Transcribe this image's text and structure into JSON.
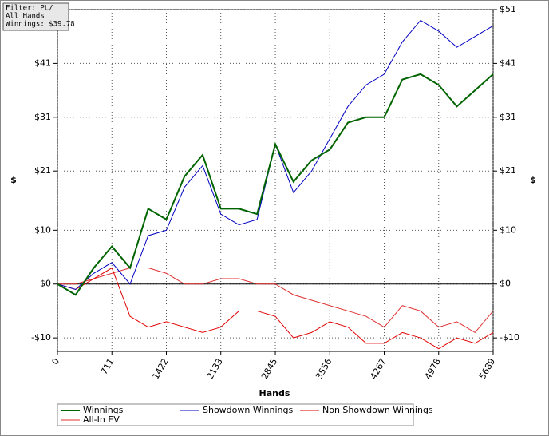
{
  "chart_data": {
    "type": "line",
    "filter_box": [
      "Filter: PL/",
      "All Hands",
      "Winnings: $39.78"
    ],
    "xlabel": "Hands",
    "ylabel": "$",
    "y2label": "$",
    "x": [
      0,
      237,
      474,
      711,
      948,
      1185,
      1422,
      1659,
      1896,
      2133,
      2370,
      2607,
      2845,
      3082,
      3319,
      3556,
      3793,
      4030,
      4267,
      4504,
      4741,
      4978,
      5215,
      5452,
      5689
    ],
    "series": [
      {
        "name": "Winnings",
        "color": "#006400",
        "values": [
          0,
          -2,
          3,
          7,
          3,
          14,
          12,
          20,
          24,
          14,
          14,
          13,
          26,
          19,
          23,
          25,
          30,
          31,
          31,
          38,
          39,
          37,
          33,
          36,
          39
        ]
      },
      {
        "name": "Showdown Winnings",
        "color": "#0000c0",
        "values": [
          0,
          -1,
          2,
          4,
          0,
          9,
          10,
          18,
          22,
          13,
          11,
          12,
          26,
          17,
          21,
          27,
          33,
          37,
          39,
          45,
          49,
          47,
          44,
          46,
          48
        ]
      },
      {
        "name": "Non Showdown Winnings",
        "color": "#e00000",
        "values": [
          0,
          -1,
          1,
          3,
          -6,
          -8,
          -7,
          -8,
          -9,
          -8,
          -5,
          -5,
          -6,
          -10,
          -9,
          -7,
          -8,
          -11,
          -11,
          -9,
          -10,
          -12,
          -10,
          -11,
          -9
        ]
      },
      {
        "name": "All-In EV",
        "color": "#e03030",
        "values": [
          0,
          0,
          1,
          2,
          3,
          3,
          2,
          0,
          0,
          1,
          1,
          0,
          0,
          -2,
          -3,
          -4,
          -5,
          -6,
          -8,
          -4,
          -5,
          -8,
          -7,
          -9,
          -5
        ]
      }
    ],
    "xlim": [
      0,
      5689
    ],
    "xticks": [
      0,
      711,
      1422,
      2133,
      2845,
      3556,
      4267,
      4978,
      5689
    ],
    "ylim": [
      -12.5,
      51
    ],
    "yticks": [
      {
        "value": 51,
        "label": "$51"
      },
      {
        "value": 41,
        "label": "$41"
      },
      {
        "value": 31,
        "label": "$31"
      },
      {
        "value": 21,
        "label": "$21"
      },
      {
        "value": 10,
        "label": "$10"
      },
      {
        "value": 0,
        "label": "$0"
      },
      {
        "value": -10,
        "label": "-$10"
      }
    ],
    "grid": true
  }
}
